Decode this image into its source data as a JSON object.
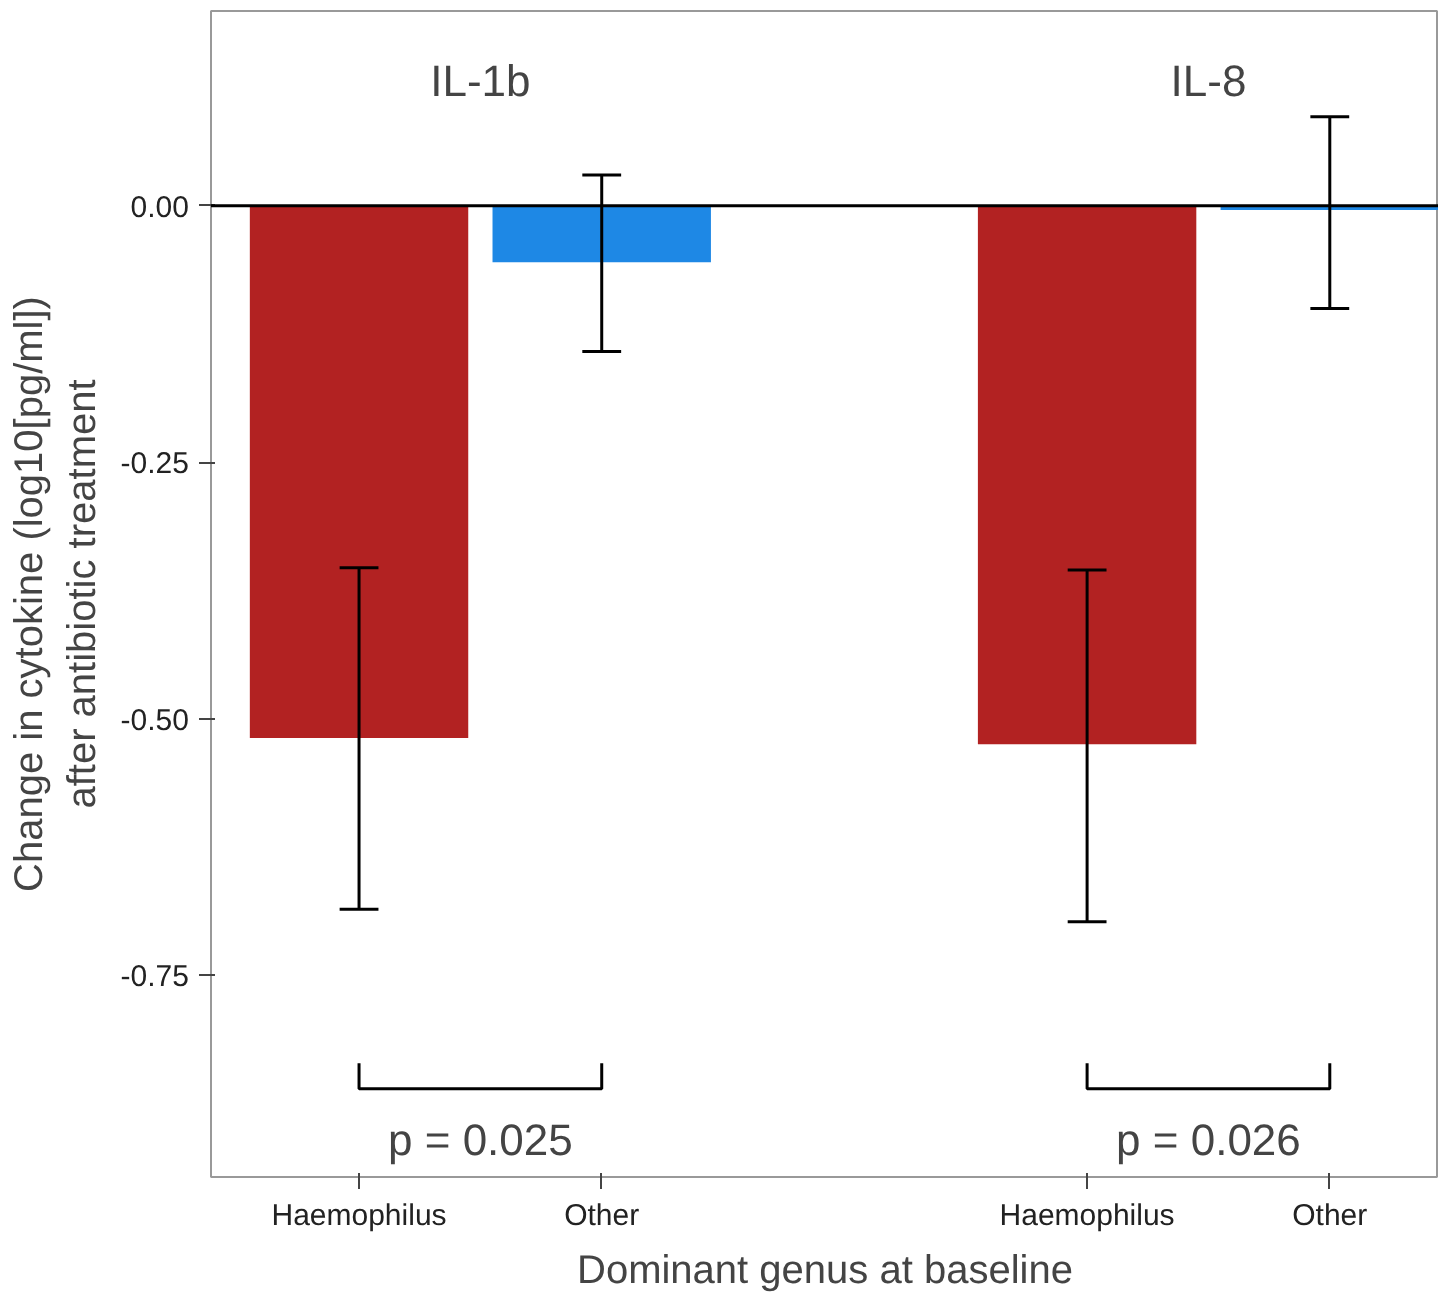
{
  "chart_data": {
    "type": "bar",
    "categories": [
      "Haemophilus",
      "Other",
      null,
      "Haemophilus",
      "Other"
    ],
    "values": [
      -0.519,
      -0.055,
      null,
      -0.525,
      -0.004
    ],
    "colors": [
      "#b22222",
      "#1e88e5",
      null,
      "#b22222",
      "#1e88e5"
    ],
    "errors": [
      [
        -0.686,
        -0.353
      ],
      [
        -0.142,
        0.03
      ],
      null,
      [
        -0.698,
        -0.355
      ],
      [
        -0.1,
        0.087
      ]
    ],
    "xlabel": "Dominant genus at baseline",
    "ylabel": "Change in cytokine (log10[pg/ml])\nafter antibiotic treatment",
    "ylim": [
      -0.947,
      0.19
    ],
    "yticks": [
      {
        "value": 0,
        "label": "0.00"
      },
      {
        "value": -0.25,
        "label": "-0.25"
      },
      {
        "value": -0.5,
        "label": "-0.50"
      },
      {
        "value": -0.75,
        "label": "-0.75"
      }
    ],
    "ref_lines": [
      {
        "axis": "y",
        "value": 0,
        "color": "#000000"
      }
    ],
    "annotations": [
      "IL-1b",
      "IL-8",
      "p = 0.025",
      "p = 0.026"
    ],
    "grid": false
  }
}
